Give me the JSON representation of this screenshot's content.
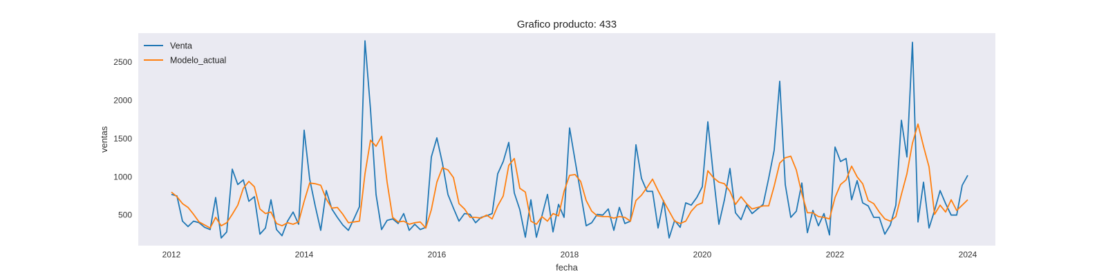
{
  "chart_data": {
    "type": "line",
    "title": "Grafico producto: 433",
    "xlabel": "fecha",
    "ylabel": "ventas",
    "x_start": "2012-01",
    "x_frequency": "monthly",
    "xlim": [
      "2011-07",
      "2024-06"
    ],
    "ylim": [
      100,
      2880
    ],
    "xticks": [
      "2012",
      "2014",
      "2016",
      "2018",
      "2020",
      "2022",
      "2024"
    ],
    "yticks": [
      500,
      1000,
      1500,
      2000,
      2500
    ],
    "grid": false,
    "legend_position": "top-left",
    "background_color": "#eaeaf2",
    "series": [
      {
        "name": "Venta",
        "color": "#1f77b4",
        "values": [
          770,
          750,
          420,
          350,
          420,
          400,
          340,
          310,
          730,
          200,
          280,
          1100,
          900,
          960,
          680,
          740,
          250,
          330,
          700,
          310,
          230,
          420,
          540,
          380,
          1610,
          970,
          620,
          300,
          820,
          580,
          470,
          370,
          300,
          450,
          610,
          2780,
          1880,
          770,
          310,
          430,
          450,
          390,
          520,
          300,
          380,
          310,
          340,
          1260,
          1510,
          1180,
          770,
          590,
          420,
          520,
          510,
          400,
          470,
          490,
          520,
          1040,
          1200,
          1450,
          790,
          570,
          210,
          700,
          210,
          490,
          770,
          280,
          640,
          470,
          1640,
          1210,
          790,
          360,
          400,
          510,
          500,
          580,
          300,
          600,
          390,
          420,
          1420,
          980,
          810,
          810,
          330,
          690,
          200,
          430,
          340,
          660,
          630,
          730,
          870,
          1720,
          1020,
          380,
          700,
          1110,
          530,
          440,
          630,
          520,
          580,
          640,
          980,
          1350,
          2250,
          900,
          470,
          550,
          920,
          270,
          560,
          360,
          520,
          240,
          1390,
          1200,
          1240,
          700,
          950,
          660,
          620,
          470,
          470,
          250,
          370,
          630,
          1740,
          1260,
          2760,
          410,
          930,
          330,
          560,
          820,
          650,
          500,
          500,
          890,
          1020
        ]
      },
      {
        "name": "Modelo_actual",
        "color": "#ff7f0e",
        "values": [
          800,
          740,
          650,
          600,
          510,
          410,
          370,
          330,
          470,
          360,
          400,
          510,
          630,
          850,
          940,
          870,
          580,
          520,
          540,
          390,
          360,
          400,
          380,
          410,
          680,
          920,
          910,
          890,
          710,
          590,
          600,
          510,
          400,
          410,
          420,
          1040,
          1480,
          1400,
          1530,
          930,
          470,
          410,
          420,
          380,
          400,
          410,
          330,
          570,
          930,
          1120,
          1090,
          990,
          650,
          580,
          470,
          470,
          460,
          500,
          450,
          620,
          750,
          1150,
          1240,
          850,
          800,
          420,
          380,
          480,
          420,
          520,
          490,
          810,
          1020,
          1030,
          940,
          690,
          550,
          490,
          480,
          480,
          460,
          480,
          470,
          420,
          690,
          760,
          860,
          970,
          820,
          680,
          550,
          420,
          390,
          420,
          550,
          630,
          660,
          1080,
          990,
          930,
          910,
          810,
          640,
          740,
          650,
          580,
          600,
          620,
          620,
          880,
          1180,
          1250,
          1270,
          1090,
          780,
          530,
          530,
          480,
          470,
          450,
          730,
          900,
          960,
          1140,
          1000,
          910,
          690,
          650,
          540,
          450,
          420,
          480,
          770,
          1040,
          1440,
          1690,
          1400,
          1130,
          510,
          630,
          540,
          700,
          560,
          630,
          700
        ]
      }
    ]
  }
}
